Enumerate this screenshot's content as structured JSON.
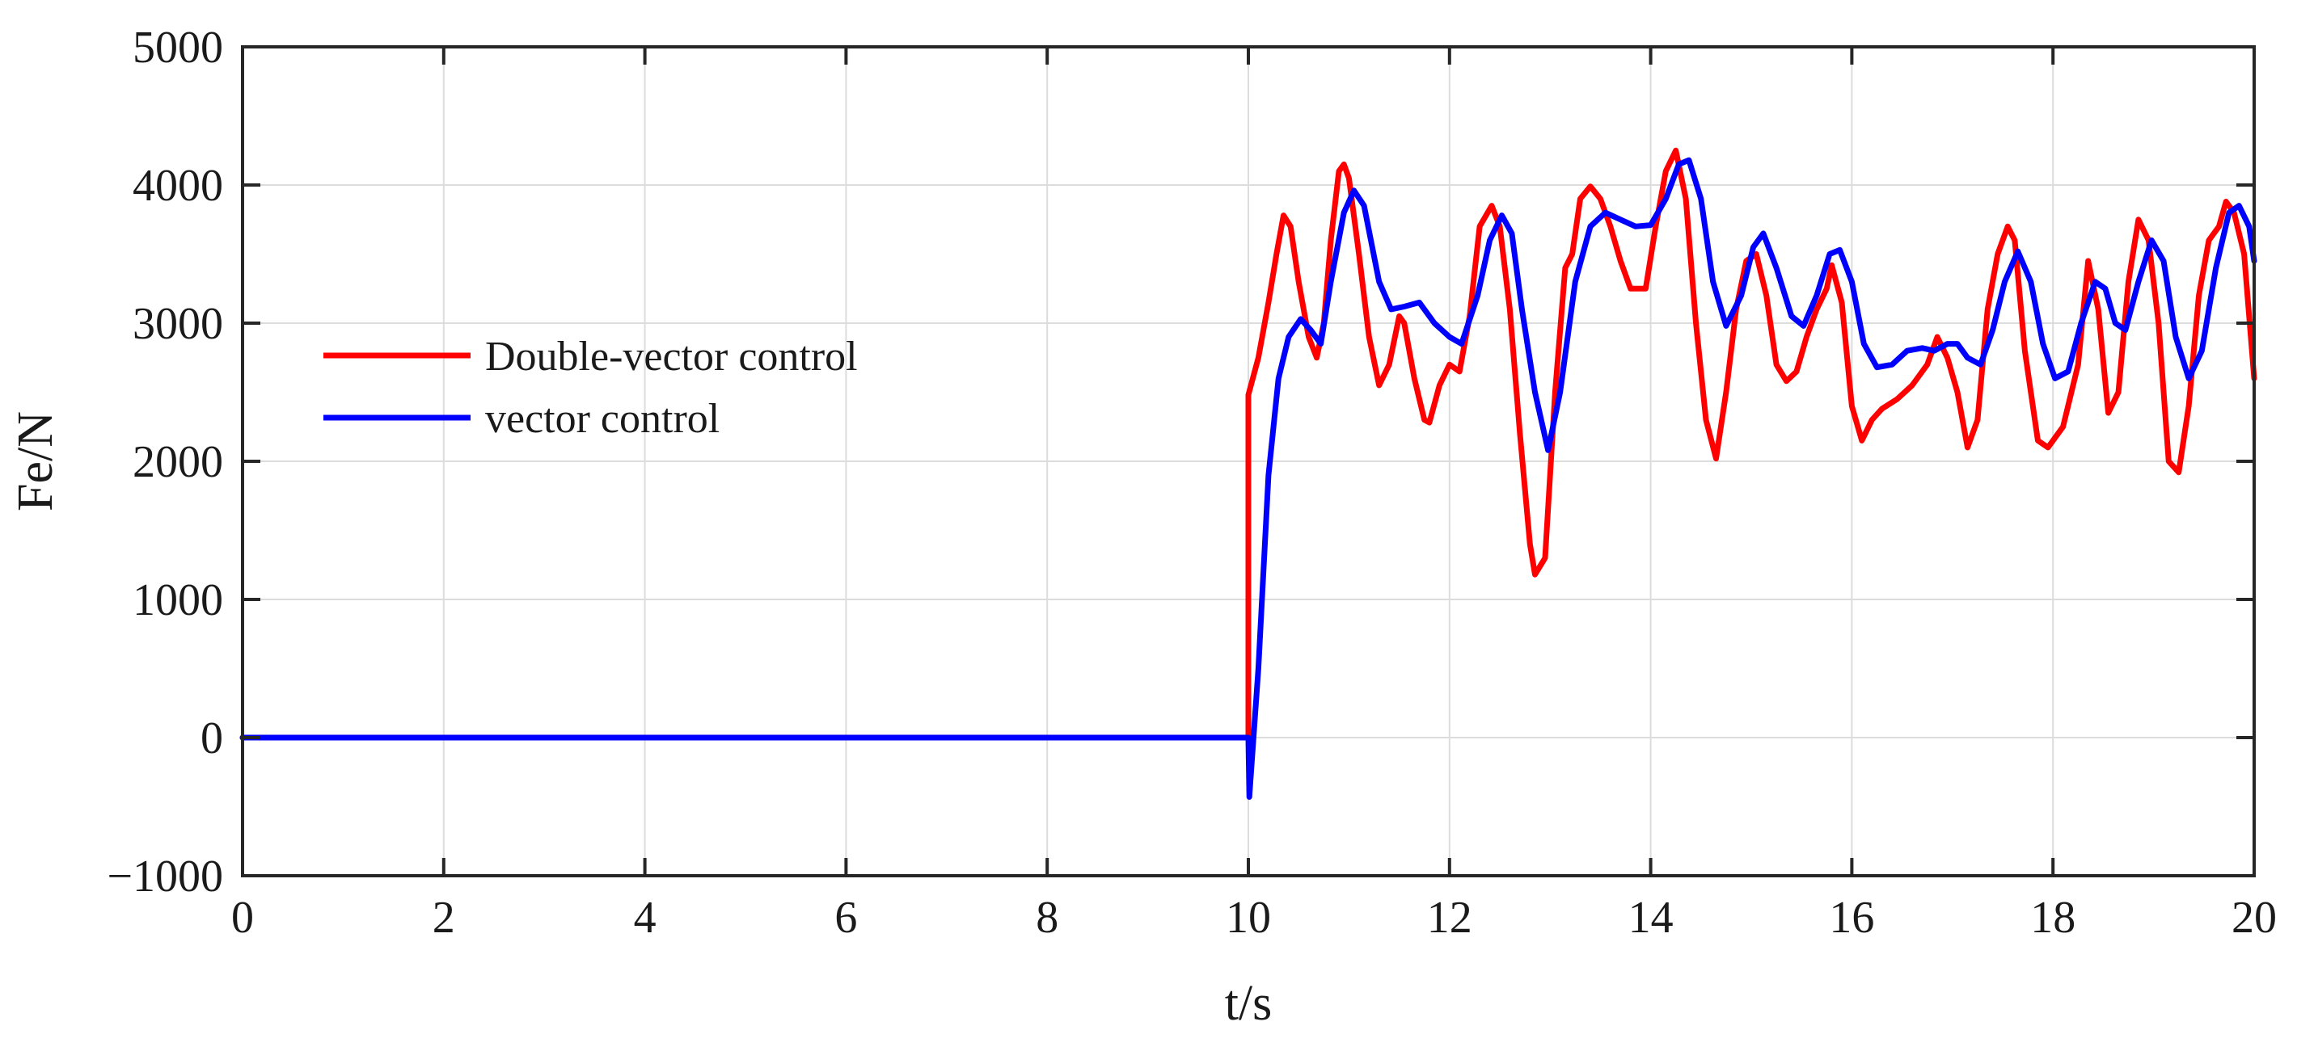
{
  "chart_data": {
    "type": "line",
    "title": "",
    "xlabel": "t/s",
    "ylabel": "Fe/N",
    "xlim": [
      0,
      20
    ],
    "ylim": [
      -1000,
      5000
    ],
    "xticks": [
      0,
      2,
      4,
      6,
      8,
      10,
      12,
      14,
      16,
      18,
      20
    ],
    "xtick_labels": [
      "0",
      "2",
      "4",
      "6",
      "8",
      "10",
      "12",
      "14",
      "16",
      "18",
      "20"
    ],
    "yticks": [
      -1000,
      0,
      1000,
      2000,
      3000,
      4000,
      5000
    ],
    "ytick_labels": [
      "−1000",
      "0",
      "1000",
      "2000",
      "3000",
      "4000",
      "5000"
    ],
    "grid": true,
    "legend_position": "upper-left",
    "series": [
      {
        "name": "Double-vector control",
        "color": "#ff0000",
        "points": [
          [
            0,
            0
          ],
          [
            10,
            0
          ],
          [
            10.0,
            2480
          ],
          [
            10.1,
            2750
          ],
          [
            10.2,
            3150
          ],
          [
            10.28,
            3500
          ],
          [
            10.35,
            3780
          ],
          [
            10.42,
            3700
          ],
          [
            10.5,
            3300
          ],
          [
            10.6,
            2900
          ],
          [
            10.68,
            2750
          ],
          [
            10.75,
            3000
          ],
          [
            10.82,
            3600
          ],
          [
            10.9,
            4100
          ],
          [
            10.95,
            4150
          ],
          [
            11.0,
            4050
          ],
          [
            11.1,
            3500
          ],
          [
            11.2,
            2900
          ],
          [
            11.3,
            2550
          ],
          [
            11.4,
            2700
          ],
          [
            11.5,
            3050
          ],
          [
            11.55,
            3000
          ],
          [
            11.65,
            2600
          ],
          [
            11.75,
            2300
          ],
          [
            11.8,
            2280
          ],
          [
            11.9,
            2550
          ],
          [
            12.0,
            2700
          ],
          [
            12.1,
            2650
          ],
          [
            12.2,
            3050
          ],
          [
            12.3,
            3700
          ],
          [
            12.42,
            3850
          ],
          [
            12.5,
            3700
          ],
          [
            12.6,
            3100
          ],
          [
            12.7,
            2200
          ],
          [
            12.8,
            1400
          ],
          [
            12.85,
            1180
          ],
          [
            12.95,
            1300
          ],
          [
            13.05,
            2500
          ],
          [
            13.15,
            3400
          ],
          [
            13.22,
            3500
          ],
          [
            13.3,
            3900
          ],
          [
            13.4,
            3990
          ],
          [
            13.5,
            3900
          ],
          [
            13.6,
            3700
          ],
          [
            13.7,
            3450
          ],
          [
            13.8,
            3250
          ],
          [
            13.95,
            3250
          ],
          [
            14.05,
            3700
          ],
          [
            14.15,
            4100
          ],
          [
            14.25,
            4250
          ],
          [
            14.35,
            3900
          ],
          [
            14.45,
            3000
          ],
          [
            14.55,
            2300
          ],
          [
            14.65,
            2020
          ],
          [
            14.75,
            2500
          ],
          [
            14.85,
            3100
          ],
          [
            14.95,
            3450
          ],
          [
            15.05,
            3500
          ],
          [
            15.15,
            3200
          ],
          [
            15.25,
            2700
          ],
          [
            15.35,
            2580
          ],
          [
            15.45,
            2650
          ],
          [
            15.55,
            2900
          ],
          [
            15.65,
            3100
          ],
          [
            15.75,
            3250
          ],
          [
            15.8,
            3420
          ],
          [
            15.9,
            3150
          ],
          [
            16.0,
            2400
          ],
          [
            16.1,
            2150
          ],
          [
            16.2,
            2300
          ],
          [
            16.3,
            2380
          ],
          [
            16.45,
            2450
          ],
          [
            16.6,
            2550
          ],
          [
            16.75,
            2700
          ],
          [
            16.85,
            2900
          ],
          [
            16.95,
            2750
          ],
          [
            17.05,
            2500
          ],
          [
            17.15,
            2100
          ],
          [
            17.25,
            2300
          ],
          [
            17.35,
            3100
          ],
          [
            17.45,
            3500
          ],
          [
            17.55,
            3700
          ],
          [
            17.62,
            3600
          ],
          [
            17.72,
            2800
          ],
          [
            17.85,
            2150
          ],
          [
            17.95,
            2100
          ],
          [
            18.1,
            2250
          ],
          [
            18.25,
            2700
          ],
          [
            18.35,
            3450
          ],
          [
            18.45,
            3100
          ],
          [
            18.55,
            2350
          ],
          [
            18.65,
            2500
          ],
          [
            18.75,
            3300
          ],
          [
            18.85,
            3750
          ],
          [
            18.95,
            3600
          ],
          [
            19.05,
            3000
          ],
          [
            19.15,
            2000
          ],
          [
            19.25,
            1920
          ],
          [
            19.35,
            2400
          ],
          [
            19.45,
            3200
          ],
          [
            19.55,
            3600
          ],
          [
            19.65,
            3700
          ],
          [
            19.72,
            3880
          ],
          [
            19.8,
            3800
          ],
          [
            19.9,
            3500
          ],
          [
            20.0,
            2600
          ]
        ]
      },
      {
        "name": "vector control",
        "color": "#0000ff",
        "points": [
          [
            0,
            0
          ],
          [
            10,
            0
          ],
          [
            10.01,
            -430
          ],
          [
            10.1,
            500
          ],
          [
            10.2,
            1900
          ],
          [
            10.3,
            2600
          ],
          [
            10.4,
            2900
          ],
          [
            10.52,
            3030
          ],
          [
            10.62,
            2950
          ],
          [
            10.72,
            2850
          ],
          [
            10.82,
            3300
          ],
          [
            10.95,
            3800
          ],
          [
            11.05,
            3960
          ],
          [
            11.15,
            3850
          ],
          [
            11.3,
            3300
          ],
          [
            11.42,
            3100
          ],
          [
            11.55,
            3120
          ],
          [
            11.7,
            3150
          ],
          [
            11.85,
            3000
          ],
          [
            12.0,
            2900
          ],
          [
            12.12,
            2850
          ],
          [
            12.28,
            3200
          ],
          [
            12.4,
            3600
          ],
          [
            12.52,
            3780
          ],
          [
            12.62,
            3650
          ],
          [
            12.72,
            3100
          ],
          [
            12.85,
            2500
          ],
          [
            12.98,
            2080
          ],
          [
            13.1,
            2500
          ],
          [
            13.25,
            3300
          ],
          [
            13.4,
            3700
          ],
          [
            13.55,
            3800
          ],
          [
            13.7,
            3750
          ],
          [
            13.85,
            3700
          ],
          [
            14.0,
            3710
          ],
          [
            14.15,
            3900
          ],
          [
            14.28,
            4150
          ],
          [
            14.38,
            4180
          ],
          [
            14.5,
            3900
          ],
          [
            14.62,
            3300
          ],
          [
            14.75,
            2980
          ],
          [
            14.9,
            3200
          ],
          [
            15.02,
            3550
          ],
          [
            15.12,
            3650
          ],
          [
            15.25,
            3400
          ],
          [
            15.4,
            3050
          ],
          [
            15.52,
            2980
          ],
          [
            15.65,
            3200
          ],
          [
            15.78,
            3500
          ],
          [
            15.88,
            3530
          ],
          [
            16.0,
            3300
          ],
          [
            16.12,
            2850
          ],
          [
            16.25,
            2680
          ],
          [
            16.4,
            2700
          ],
          [
            16.55,
            2800
          ],
          [
            16.7,
            2820
          ],
          [
            16.82,
            2800
          ],
          [
            16.95,
            2850
          ],
          [
            17.05,
            2850
          ],
          [
            17.15,
            2750
          ],
          [
            17.28,
            2700
          ],
          [
            17.4,
            2950
          ],
          [
            17.52,
            3300
          ],
          [
            17.65,
            3520
          ],
          [
            17.78,
            3300
          ],
          [
            17.9,
            2850
          ],
          [
            18.02,
            2600
          ],
          [
            18.15,
            2650
          ],
          [
            18.28,
            3000
          ],
          [
            18.42,
            3300
          ],
          [
            18.52,
            3250
          ],
          [
            18.62,
            3000
          ],
          [
            18.72,
            2950
          ],
          [
            18.85,
            3300
          ],
          [
            18.98,
            3600
          ],
          [
            19.1,
            3450
          ],
          [
            19.22,
            2900
          ],
          [
            19.35,
            2600
          ],
          [
            19.48,
            2800
          ],
          [
            19.62,
            3400
          ],
          [
            19.75,
            3800
          ],
          [
            19.85,
            3850
          ],
          [
            19.95,
            3700
          ],
          [
            20.0,
            3450
          ]
        ]
      }
    ]
  }
}
